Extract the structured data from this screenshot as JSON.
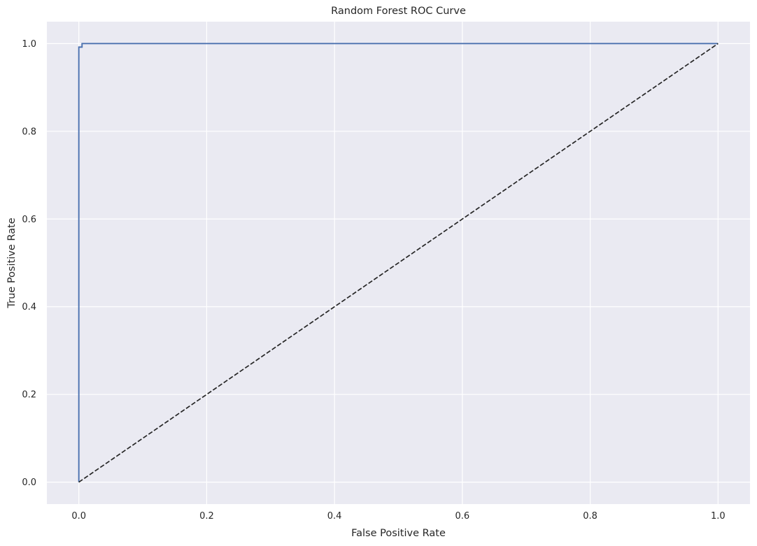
{
  "chart_data": {
    "type": "line",
    "title": "Random Forest ROC Curve",
    "xlabel": "False Positive Rate",
    "ylabel": "True Positive Rate",
    "xlim": [
      -0.05,
      1.05
    ],
    "ylim": [
      -0.05,
      1.05
    ],
    "xticks": [
      0.0,
      0.2,
      0.4,
      0.6,
      0.8,
      1.0
    ],
    "yticks": [
      0.0,
      0.2,
      0.4,
      0.6,
      0.8,
      1.0
    ],
    "xtick_labels": [
      "0.0",
      "0.2",
      "0.4",
      "0.6",
      "0.8",
      "1.0"
    ],
    "ytick_labels": [
      "0.0",
      "0.2",
      "0.4",
      "0.6",
      "0.8",
      "1.0"
    ],
    "grid": true,
    "series": [
      {
        "style": "solid",
        "color": "#4c72b0",
        "x": [
          0.0,
          0.0,
          0.005,
          0.005,
          1.0
        ],
        "y": [
          0.0,
          0.992,
          0.992,
          1.0,
          1.0
        ]
      },
      {
        "style": "dashed",
        "color": "#262626",
        "x": [
          0.0,
          1.0
        ],
        "y": [
          0.0,
          1.0
        ]
      }
    ],
    "colors": {
      "plot_background": "#eaeaf2",
      "grid": "#ffffff",
      "text": "#262626"
    }
  }
}
